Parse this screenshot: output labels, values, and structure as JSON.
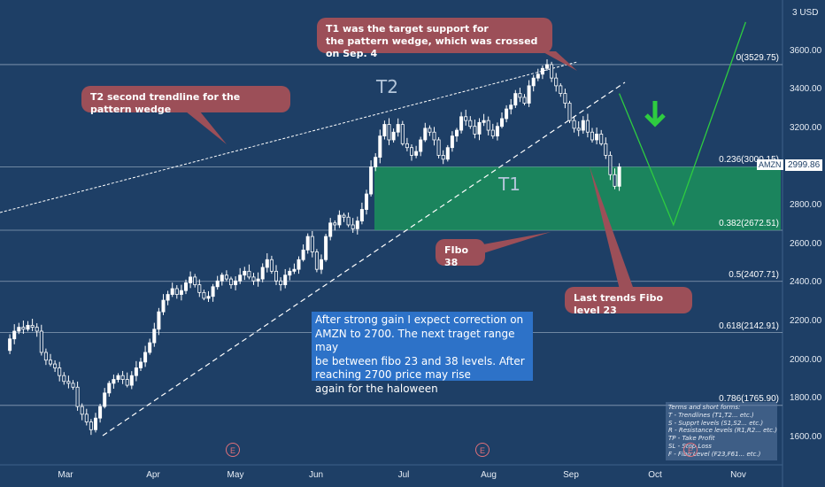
{
  "chart_data": {
    "type": "candlestick",
    "symbol": "AMZN",
    "currency": "3 USD",
    "last_price": "2999.86",
    "y_ticks": [
      "3600.00",
      "3400.00",
      "3200.00",
      "3000.00",
      "2800.00",
      "2600.00",
      "2400.00",
      "2200.00",
      "2000.00",
      "1800.00",
      "1600.00"
    ],
    "x_ticks": [
      "Mar",
      "Apr",
      "May",
      "Jun",
      "Jul",
      "Aug",
      "Sep",
      "Oct",
      "Nov"
    ],
    "ylim": [
      1500,
      3800
    ],
    "fibo_levels": [
      {
        "label": "0(3529.75)",
        "value": 3529.75
      },
      {
        "label": "0.236(3000.15)",
        "value": 3000.15
      },
      {
        "label": "0.382(2672.51)",
        "value": 2672.51
      },
      {
        "label": "0.5(2407.71)",
        "value": 2407.71
      },
      {
        "label": "0.618(2142.91)",
        "value": 2142.91
      },
      {
        "label": "0.786(1765.90)",
        "value": 1765.9
      }
    ],
    "closes": [
      2050,
      2110,
      2150,
      2170,
      2160,
      2180,
      2170,
      2150,
      2040,
      2000,
      1980,
      1960,
      1920,
      1890,
      1880,
      1860,
      1760,
      1720,
      1680,
      1640,
      1700,
      1760,
      1830,
      1880,
      1900,
      1920,
      1900,
      1870,
      1920,
      1960,
      1990,
      2040,
      2090,
      2160,
      2250,
      2310,
      2340,
      2370,
      2340,
      2360,
      2400,
      2430,
      2390,
      2350,
      2320,
      2330,
      2380,
      2410,
      2440,
      2420,
      2390,
      2410,
      2440,
      2460,
      2430,
      2410,
      2420,
      2480,
      2520,
      2460,
      2410,
      2390,
      2440,
      2460,
      2470,
      2520,
      2570,
      2640,
      2560,
      2470,
      2520,
      2640,
      2710,
      2700,
      2750,
      2740,
      2700,
      2680,
      2720,
      2780,
      2860,
      3000,
      3050,
      3160,
      3220,
      3140,
      3180,
      3220,
      3120,
      3100,
      3060,
      3080,
      3140,
      3200,
      3180,
      3140,
      3060,
      3040,
      3100,
      3160,
      3190,
      3260,
      3240,
      3210,
      3170,
      3230,
      3240,
      3190,
      3160,
      3210,
      3250,
      3300,
      3320,
      3380,
      3360,
      3330,
      3420,
      3460,
      3480,
      3510,
      3530,
      3460,
      3420,
      3380,
      3330,
      3240,
      3200,
      3190,
      3240,
      3180,
      3140,
      3170,
      3120,
      3060,
      2960,
      2900,
      3000
    ],
    "projection": [
      {
        "date_index": 136,
        "price": 3380
      },
      {
        "date_index": 148,
        "price": 2700
      },
      {
        "date_index": 164,
        "price": 3750
      }
    ],
    "zones": [
      {
        "label": "T1",
        "from": 2672.51,
        "to": 3000.15
      }
    ],
    "trendlines": [
      "T1",
      "T2"
    ]
  },
  "annotations": {
    "t1_callout": "T1 was the target support for\nthe pattern wedge, which was crossed on Sep. 4",
    "t2_callout": "T2 second trendline for the pattern wedge",
    "fibo38_callout": "FIbo 38",
    "last_trends_callout": "Last trends Fibo level 23",
    "main_note": "After strong gain I expect correction on\nAMZN to 2700. The next traget range may\n be between fibo 23 and 38 levels. After\nreaching 2700 price may rise\n again for the haloween",
    "t2_label": "T2",
    "t1_label": "T1",
    "earnings_marker": "E"
  },
  "legend": {
    "lines": [
      "Terms and short forms:",
      "T - Trendlines (T1,T2... etc.)",
      "S - Supprt levels (S1,S2... etc.)",
      "R - Resistance levels (R1,R2... etc.)",
      "TP - Take Profit",
      "SL - Stop Loss",
      "F - Fibo Level (F23,F61... etc.)"
    ]
  },
  "colors": {
    "background": "#1e3f66",
    "candle": "#ffffff",
    "zone": "#1aa05a",
    "projection": "#2ecc40",
    "callout": "#9c4f58",
    "note": "#2d72c8"
  }
}
